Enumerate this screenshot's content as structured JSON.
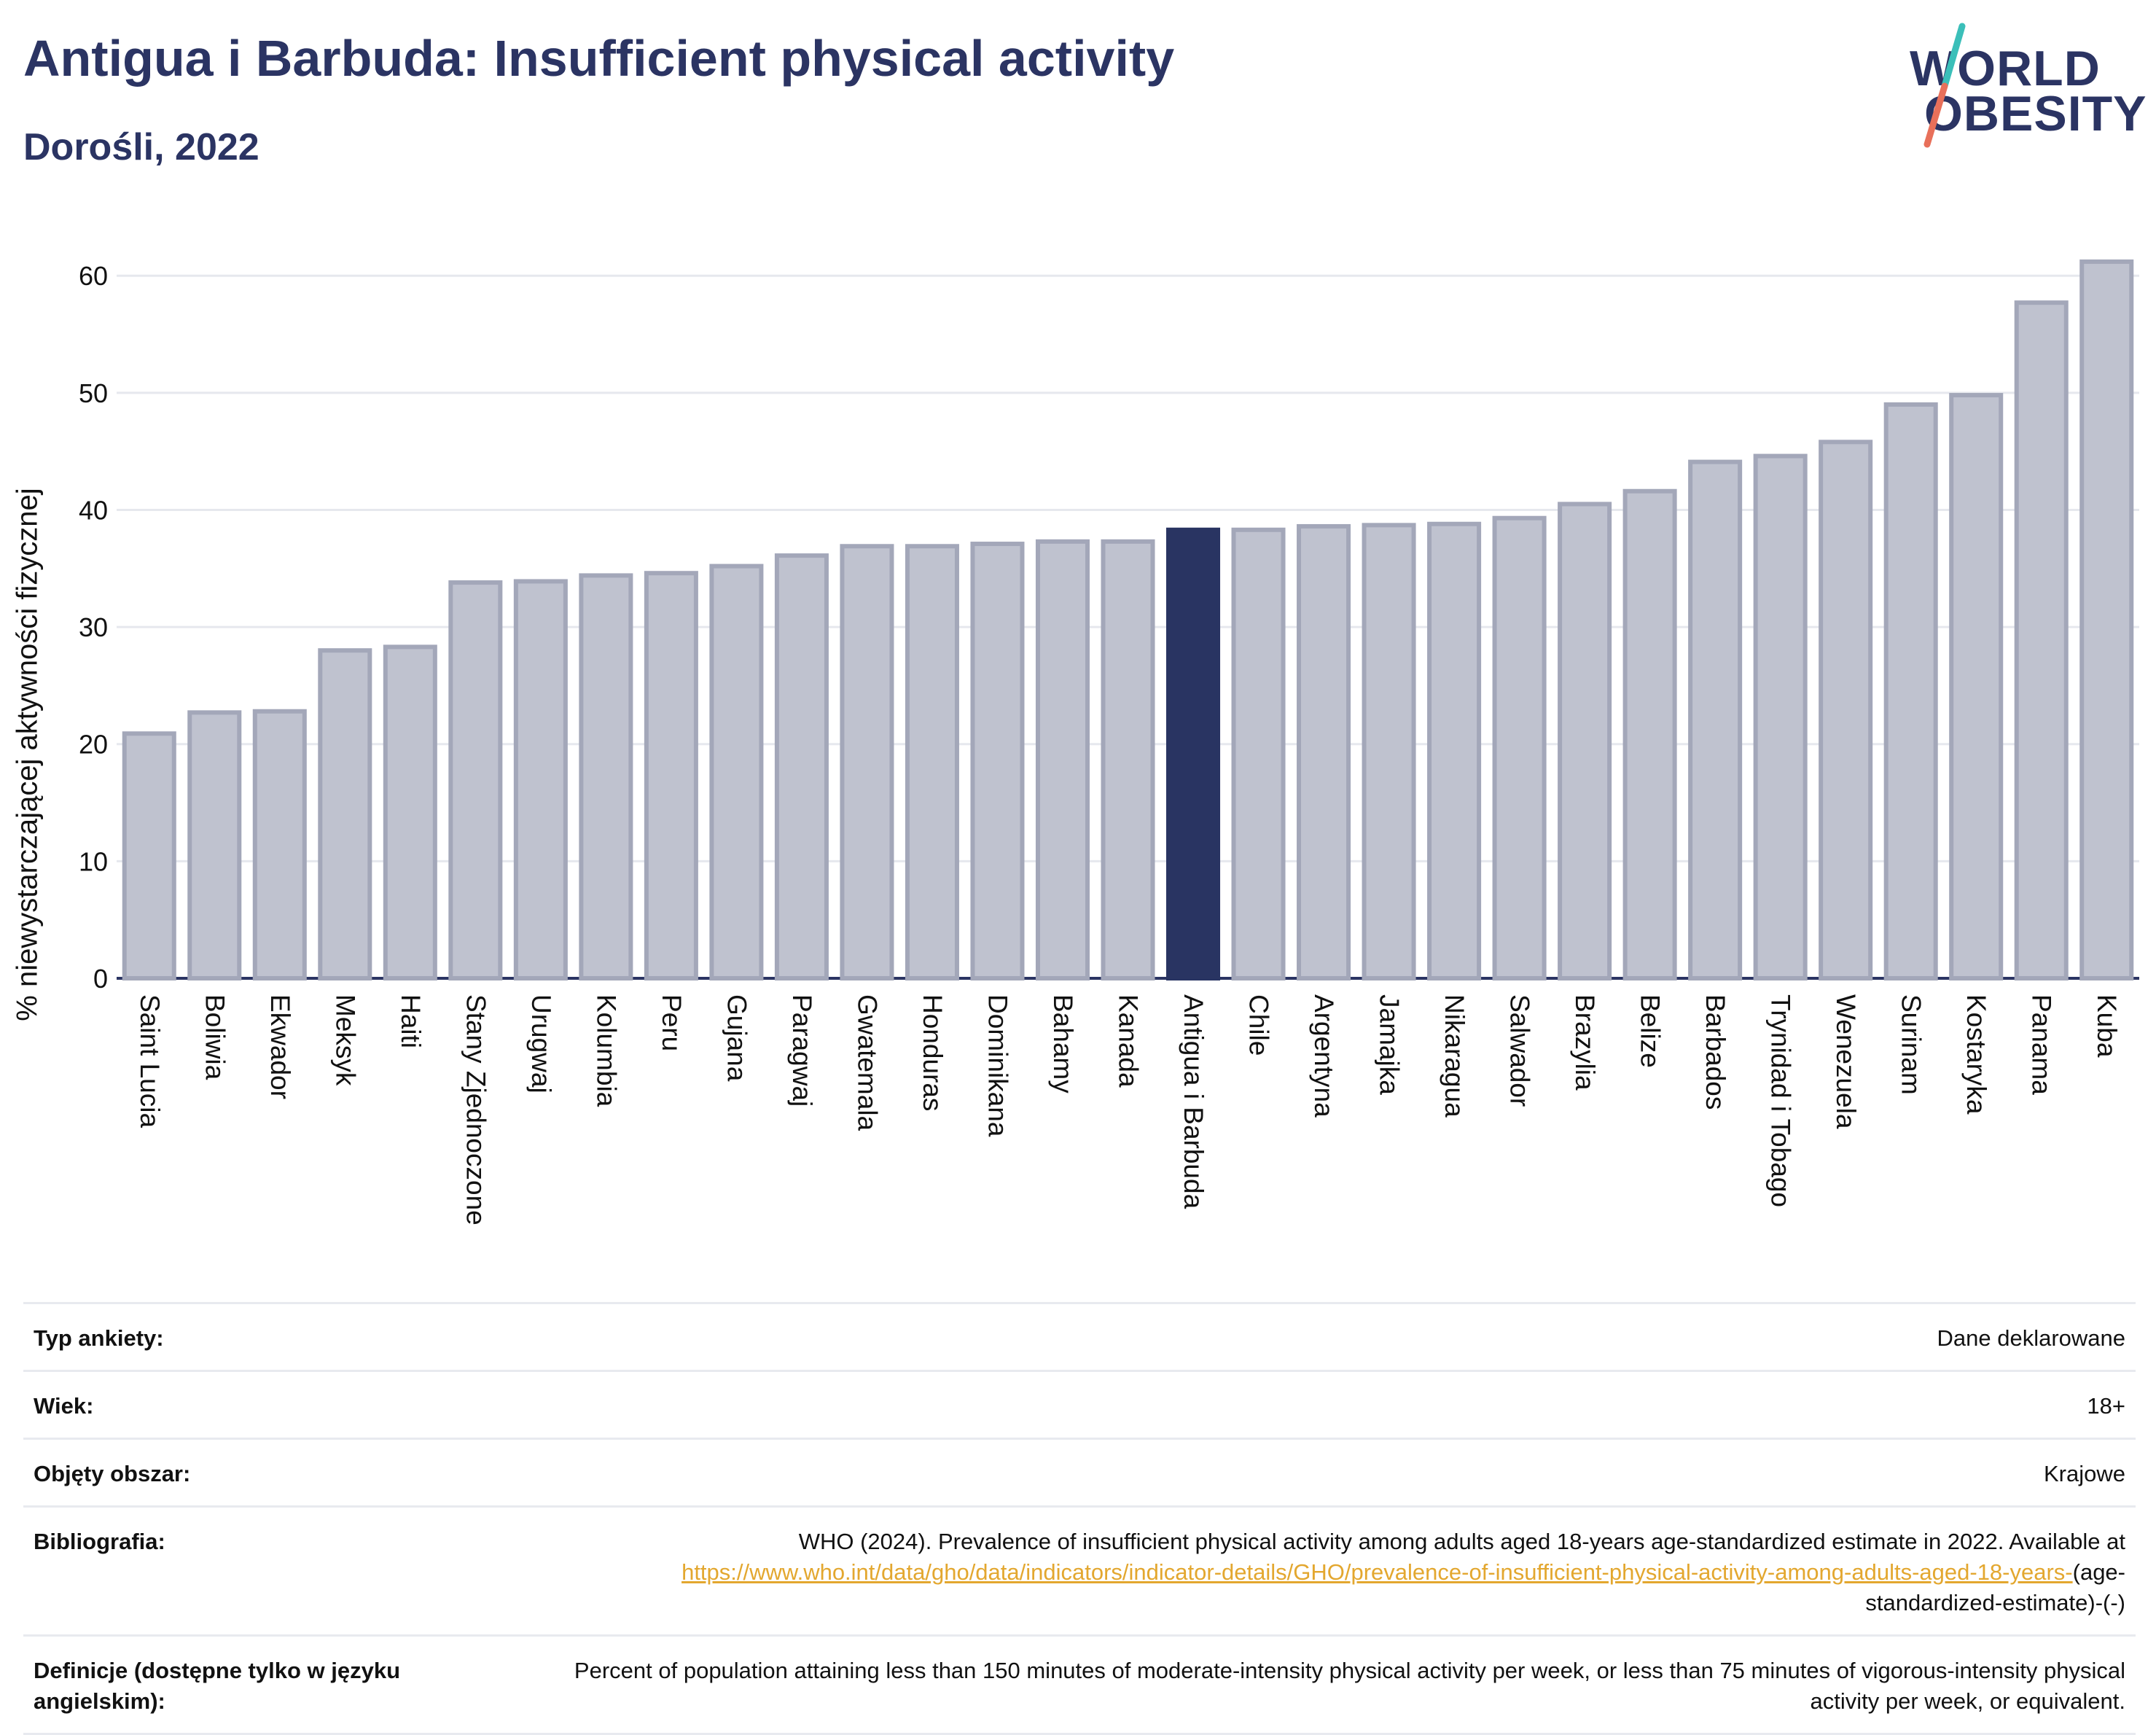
{
  "header": {
    "title": "Antigua i Barbuda: Insufficient physical activity",
    "subtitle": "Dorośli, 2022",
    "logo_line1": "WORLD",
    "logo_line2": "OBESITY"
  },
  "colors": {
    "bar": "#bfc2cf",
    "bar_edge": "#a3a7b9",
    "highlight": "#293462",
    "title": "#2b3463",
    "link": "#e3a72f"
  },
  "chart_data": {
    "type": "bar",
    "ylabel": "% niewystarczającej aktywności fizycznej",
    "ylim": [
      0,
      63
    ],
    "yticks": [
      0,
      10,
      20,
      30,
      40,
      50,
      60
    ],
    "grid": true,
    "highlight": "Antigua i Barbuda",
    "categories": [
      "Saint Lucia",
      "Boliwia",
      "Ekwador",
      "Meksyk",
      "Haiti",
      "Stany Zjednoczone",
      "Urugwaj",
      "Kolumbia",
      "Peru",
      "Gujana",
      "Paragwaj",
      "Gwatemala",
      "Honduras",
      "Dominikana",
      "Bahamy",
      "Kanada",
      "Antigua i Barbuda",
      "Chile",
      "Argentyna",
      "Jamajka",
      "Nikaragua",
      "Salwador",
      "Brazylia",
      "Belize",
      "Barbados",
      "Trynidad i Tobago",
      "Wenezuela",
      "Surinam",
      "Kostaryka",
      "Panama",
      "Kuba"
    ],
    "values": [
      20.9,
      22.7,
      22.8,
      28.0,
      28.3,
      33.8,
      33.9,
      34.4,
      34.6,
      35.2,
      36.1,
      36.9,
      36.9,
      37.1,
      37.3,
      37.3,
      38.3,
      38.3,
      38.6,
      38.7,
      38.8,
      39.3,
      40.5,
      41.6,
      44.1,
      44.6,
      45.8,
      49.0,
      49.8,
      57.7,
      61.2
    ]
  },
  "info": {
    "survey_label": "Typ ankiety:",
    "survey_value": "Dane deklarowane",
    "age_label": "Wiek:",
    "age_value": "18+",
    "area_label": "Objęty obszar:",
    "area_value": "Krajowe",
    "biblio_label": "Bibliografia:",
    "biblio_text": "WHO (2024). Prevalence of insufficient physical activity among adults aged 18-years age-standardized estimate in 2022. Available at",
    "biblio_link": "https://www.who.int/data/gho/data/indicators/indicator-details/GHO/prevalence-of-insufficient-physical-activity-among-adults-aged-18-years-",
    "biblio_suffix": "(age-standardized-estimate)-(-)",
    "def_label": "Definicje (dostępne tylko w języku angielskim):",
    "def_text": "Percent of population attaining less than 150 minutes of moderate-intensity physical activity per week, or less than 75 minutes of vigorous-intensity physical activity per week, or equivalent."
  }
}
